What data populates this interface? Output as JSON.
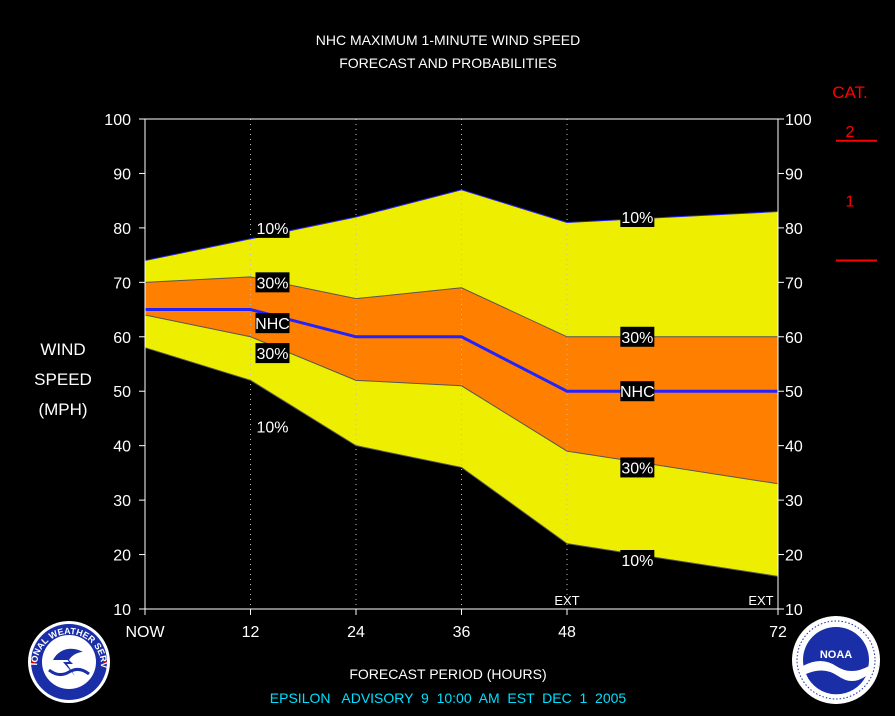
{
  "header": {
    "title_line1": "NHC MAXIMUM 1-MINUTE WIND SPEED",
    "title_line2": "FORECAST AND PROBABILITIES"
  },
  "ylabel_lines": [
    "WIND",
    "SPEED",
    "(MPH)"
  ],
  "xlabel": "FORECAST PERIOD (HOURS)",
  "advisory": "EPSILON   ADVISORY  9  10:00  AM  EST  DEC  1  2005",
  "category_panel": {
    "title": "CAT.",
    "labels": [
      "2",
      "1"
    ],
    "thresholds": [
      96,
      74
    ],
    "color": "#ff0000"
  },
  "logos": {
    "left": "NATIONAL WEATHER SERVICE",
    "right": "NOAA"
  },
  "colors": {
    "outer_band": "#eeee00",
    "inner_band": "#ff8000",
    "forecast_line": "#2222ff",
    "axis": "#ffffff",
    "text_cyan": "#00e0ff"
  },
  "chart_data": {
    "type": "area",
    "x": [
      0,
      12,
      24,
      36,
      48,
      72
    ],
    "x_tick_labels": [
      "NOW",
      "12",
      "24",
      "36",
      "48",
      "72"
    ],
    "xlim": [
      0,
      72
    ],
    "ylim": [
      10,
      100
    ],
    "y_ticks": [
      10,
      20,
      30,
      40,
      50,
      60,
      70,
      80,
      90,
      100
    ],
    "ext_labels": [
      {
        "x": 48,
        "text": "EXT"
      },
      {
        "x": 72,
        "text": "EXT"
      }
    ],
    "series": [
      {
        "name": "10%",
        "role": "upper10",
        "values": [
          74,
          78,
          82,
          87,
          81,
          83
        ]
      },
      {
        "name": "30%",
        "role": "upper30",
        "values": [
          70,
          71,
          67,
          69,
          60,
          60
        ]
      },
      {
        "name": "NHC",
        "role": "forecast",
        "values": [
          65,
          65,
          60,
          60,
          50,
          50
        ]
      },
      {
        "name": "30%",
        "role": "lower30",
        "values": [
          64,
          60,
          52,
          51,
          39,
          33
        ]
      },
      {
        "name": "10%",
        "role": "lower10",
        "values": [
          58,
          52,
          40,
          36,
          22,
          16
        ]
      }
    ],
    "annotations": [
      {
        "text": "10%",
        "x": 14.5,
        "y": 80
      },
      {
        "text": "30%",
        "x": 14.5,
        "y": 70
      },
      {
        "text": "NHC",
        "x": 14.5,
        "y": 62.5
      },
      {
        "text": "30%",
        "x": 14.5,
        "y": 57
      },
      {
        "text": "10%",
        "x": 14.5,
        "y": 43.5
      },
      {
        "text": "10%",
        "x": 56,
        "y": 82
      },
      {
        "text": "30%",
        "x": 56,
        "y": 60
      },
      {
        "text": "NHC",
        "x": 56,
        "y": 50
      },
      {
        "text": "30%",
        "x": 56,
        "y": 36
      },
      {
        "text": "10%",
        "x": 56,
        "y": 19
      }
    ]
  }
}
